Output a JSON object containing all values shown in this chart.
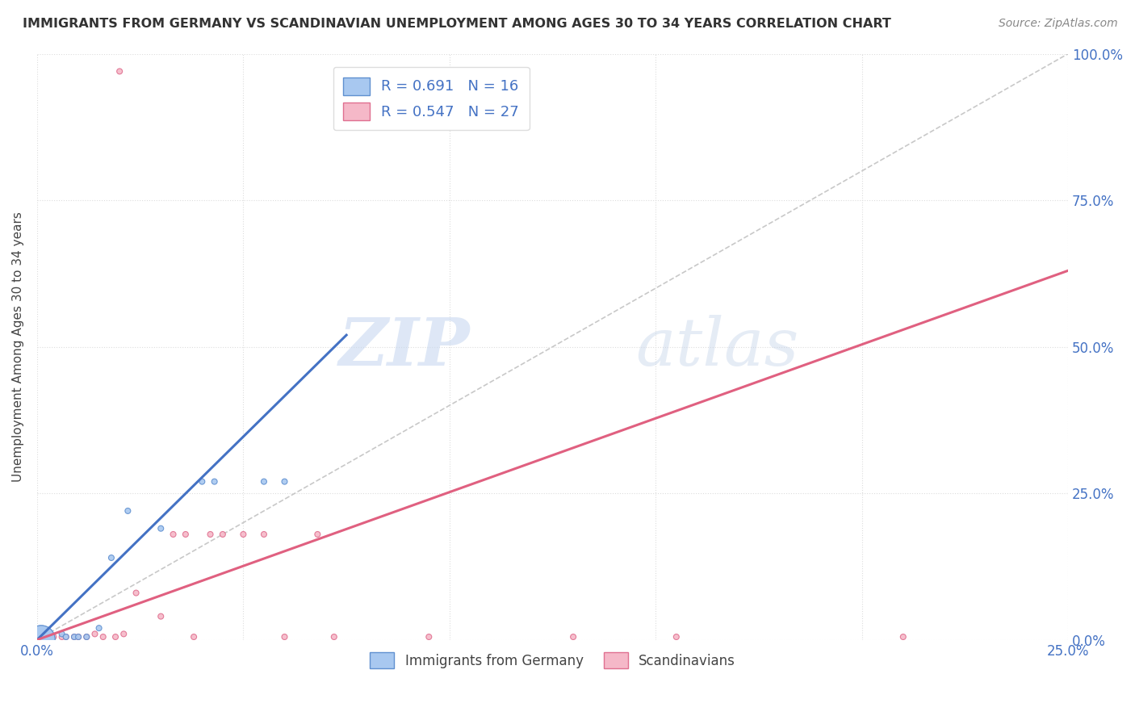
{
  "title": "IMMIGRANTS FROM GERMANY VS SCANDINAVIAN UNEMPLOYMENT AMONG AGES 30 TO 34 YEARS CORRELATION CHART",
  "source": "Source: ZipAtlas.com",
  "ylabel": "Unemployment Among Ages 30 to 34 years",
  "xlim": [
    0.0,
    0.25
  ],
  "ylim": [
    0.0,
    1.0
  ],
  "xticks": [
    0.0,
    0.05,
    0.1,
    0.15,
    0.2,
    0.25
  ],
  "yticks": [
    0.0,
    0.25,
    0.5,
    0.75,
    1.0
  ],
  "xtick_labels_show": [
    "0.0%",
    "",
    "",
    "",
    "",
    "25.0%"
  ],
  "ytick_labels_right": [
    "0.0%",
    "25.0%",
    "50.0%",
    "75.0%",
    "100.0%"
  ],
  "blue_label": "Immigrants from Germany",
  "pink_label": "Scandinavians",
  "blue_R": "0.691",
  "blue_N": "16",
  "pink_R": "0.547",
  "pink_N": "27",
  "blue_color": "#A8C8F0",
  "pink_color": "#F5B8C8",
  "blue_edge_color": "#6090D0",
  "pink_edge_color": "#E07090",
  "blue_line_color": "#4472C4",
  "pink_line_color": "#E06080",
  "ref_line_color": "#BBBBBB",
  "background_color": "#FFFFFF",
  "watermark_zip": "ZIP",
  "watermark_atlas": "atlas",
  "blue_points": [
    [
      0.003,
      0.005
    ],
    [
      0.006,
      0.01
    ],
    [
      0.007,
      0.005
    ],
    [
      0.009,
      0.005
    ],
    [
      0.01,
      0.005
    ],
    [
      0.012,
      0.005
    ],
    [
      0.015,
      0.02
    ],
    [
      0.018,
      0.14
    ],
    [
      0.022,
      0.22
    ],
    [
      0.03,
      0.19
    ],
    [
      0.04,
      0.27
    ],
    [
      0.043,
      0.27
    ],
    [
      0.055,
      0.27
    ],
    [
      0.06,
      0.27
    ],
    [
      0.001,
      0.001
    ],
    [
      0.001,
      0.001
    ]
  ],
  "blue_sizes": [
    25,
    25,
    25,
    25,
    25,
    25,
    25,
    25,
    25,
    25,
    25,
    25,
    25,
    25,
    600,
    600
  ],
  "pink_points": [
    [
      0.004,
      0.005
    ],
    [
      0.006,
      0.005
    ],
    [
      0.007,
      0.005
    ],
    [
      0.009,
      0.005
    ],
    [
      0.01,
      0.005
    ],
    [
      0.012,
      0.005
    ],
    [
      0.014,
      0.01
    ],
    [
      0.016,
      0.005
    ],
    [
      0.019,
      0.005
    ],
    [
      0.021,
      0.01
    ],
    [
      0.024,
      0.08
    ],
    [
      0.03,
      0.04
    ],
    [
      0.033,
      0.18
    ],
    [
      0.036,
      0.18
    ],
    [
      0.038,
      0.005
    ],
    [
      0.042,
      0.18
    ],
    [
      0.045,
      0.18
    ],
    [
      0.05,
      0.18
    ],
    [
      0.055,
      0.18
    ],
    [
      0.06,
      0.005
    ],
    [
      0.068,
      0.18
    ],
    [
      0.072,
      0.005
    ],
    [
      0.095,
      0.005
    ],
    [
      0.13,
      0.005
    ],
    [
      0.155,
      0.005
    ],
    [
      0.21,
      0.005
    ],
    [
      0.02,
      0.97
    ]
  ],
  "pink_sizes": [
    25,
    25,
    25,
    25,
    25,
    25,
    25,
    25,
    25,
    25,
    25,
    25,
    25,
    25,
    25,
    25,
    25,
    25,
    25,
    25,
    25,
    25,
    25,
    25,
    25,
    25,
    25
  ],
  "blue_line_x": [
    0.0,
    0.075
  ],
  "blue_line_y": [
    0.0,
    0.52
  ],
  "pink_line_x": [
    0.0,
    0.25
  ],
  "pink_line_y": [
    0.0,
    0.63
  ],
  "ref_line_x": [
    0.0,
    0.25
  ],
  "ref_line_y": [
    0.0,
    1.0
  ]
}
